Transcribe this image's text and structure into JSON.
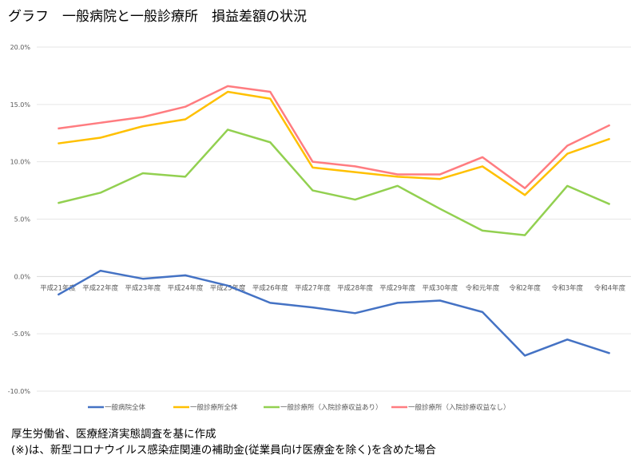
{
  "title": "グラフ　一般病院と一般診療所　損益差額の状況",
  "notes": [
    "厚生労働省、医療経済実態調査を基に作成",
    "(※)は、新型コロナウイルス感染症関連の補助金(従業員向け医療金を除く)を含めた場合"
  ],
  "chart_data": {
    "type": "line",
    "title": "グラフ　一般病院と一般診療所　損益差額の状況",
    "categories": [
      "平成21年度",
      "平成22年度",
      "平成23年度",
      "平成24年度",
      "平成25年度",
      "平成26年度",
      "平成27年度",
      "平成28年度",
      "平成29年度",
      "平成30年度",
      "令和元年度",
      "令和2年度",
      "令和3年度",
      "令和4年度"
    ],
    "yticks": [
      "20.0%",
      "15.0%",
      "10.0%",
      "5.0%",
      "0.0%",
      "-5.0%",
      "-10.0%"
    ],
    "ylim": [
      -10,
      20
    ],
    "grid": true,
    "legend_position": "bottom",
    "series": [
      {
        "name": "一般病院全体",
        "color": "#4472c4",
        "values": [
          -1.6,
          0.5,
          -0.2,
          0.1,
          -0.8,
          -2.3,
          -2.7,
          -3.2,
          -2.3,
          -2.1,
          -3.1,
          -6.9,
          -5.5,
          -6.7
        ]
      },
      {
        "name": "一般診療所全体",
        "color": "#ffc000",
        "values": [
          11.6,
          12.1,
          13.1,
          13.7,
          16.1,
          15.5,
          9.5,
          9.1,
          8.7,
          8.5,
          9.6,
          7.1,
          10.7,
          12.0
        ]
      },
      {
        "name": "一般診療所（入院診療収益あり）",
        "color": "#92d050",
        "values": [
          6.4,
          7.3,
          9.0,
          8.7,
          12.8,
          11.7,
          7.5,
          6.7,
          7.9,
          5.9,
          4.0,
          3.6,
          7.9,
          6.3
        ]
      },
      {
        "name": "一般診療所（入院診療収益なし）",
        "color": "#ff7c80",
        "values": [
          12.9,
          13.4,
          13.9,
          14.8,
          16.6,
          16.1,
          10.0,
          9.6,
          8.9,
          8.9,
          10.4,
          7.7,
          11.4,
          13.2
        ]
      }
    ]
  }
}
